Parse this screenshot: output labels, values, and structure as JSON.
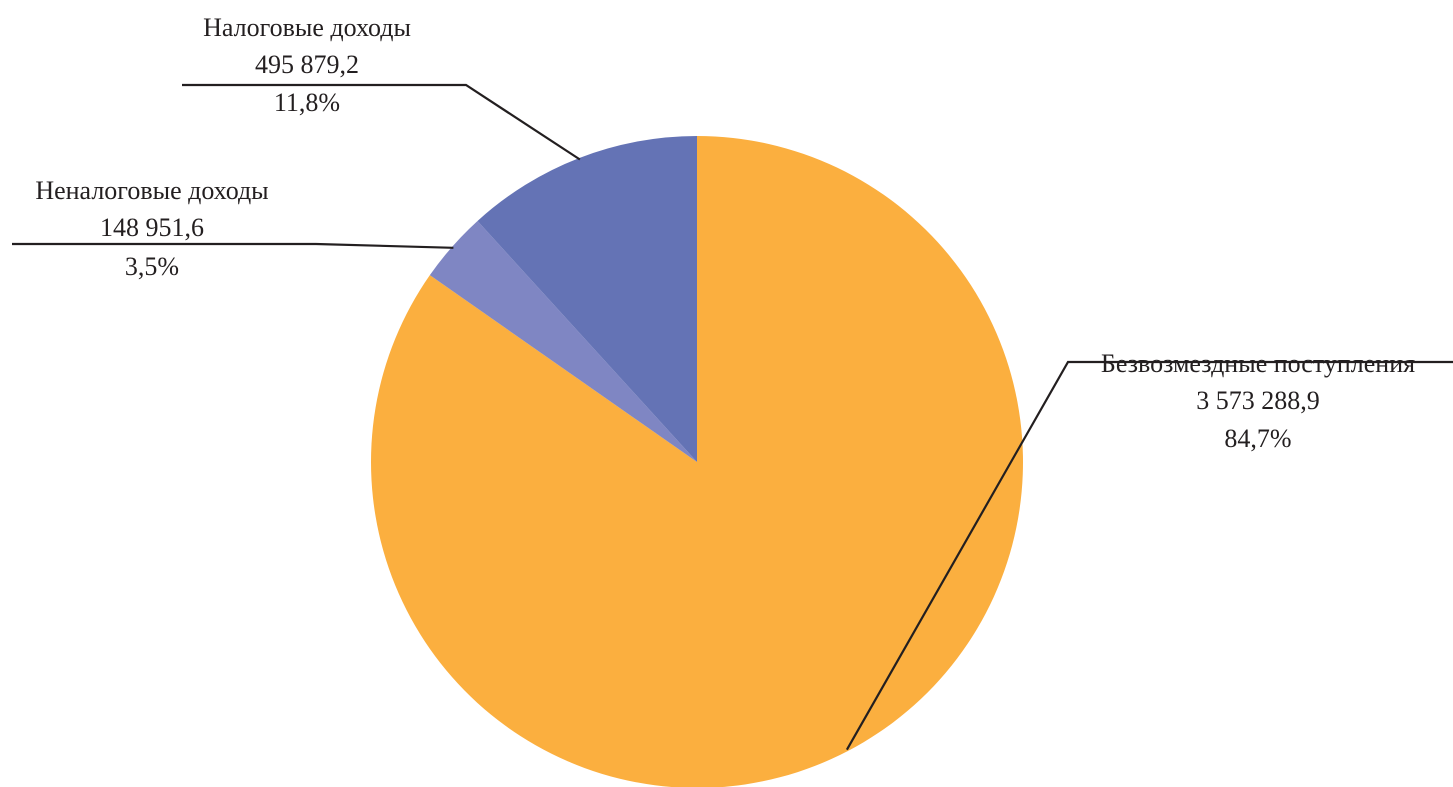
{
  "chart_data": {
    "type": "pie",
    "start_angle_deg": 0,
    "direction": "clockwise",
    "series": [
      {
        "label": "Безвозмездные поступления",
        "value": 3573288.9,
        "value_text": "3 573 288,9",
        "percent_text": "84,7%",
        "color": "#fbaf3f"
      },
      {
        "label": "Неналоговые доходы",
        "value": 148951.6,
        "value_text": "148 951,6",
        "percent_text": "3,5%",
        "color": "#7f86c3"
      },
      {
        "label": "Налоговые доходы",
        "value": 495879.2,
        "value_text": "495 879,2",
        "percent_text": "11,8%",
        "color": "#6473b5"
      }
    ]
  }
}
